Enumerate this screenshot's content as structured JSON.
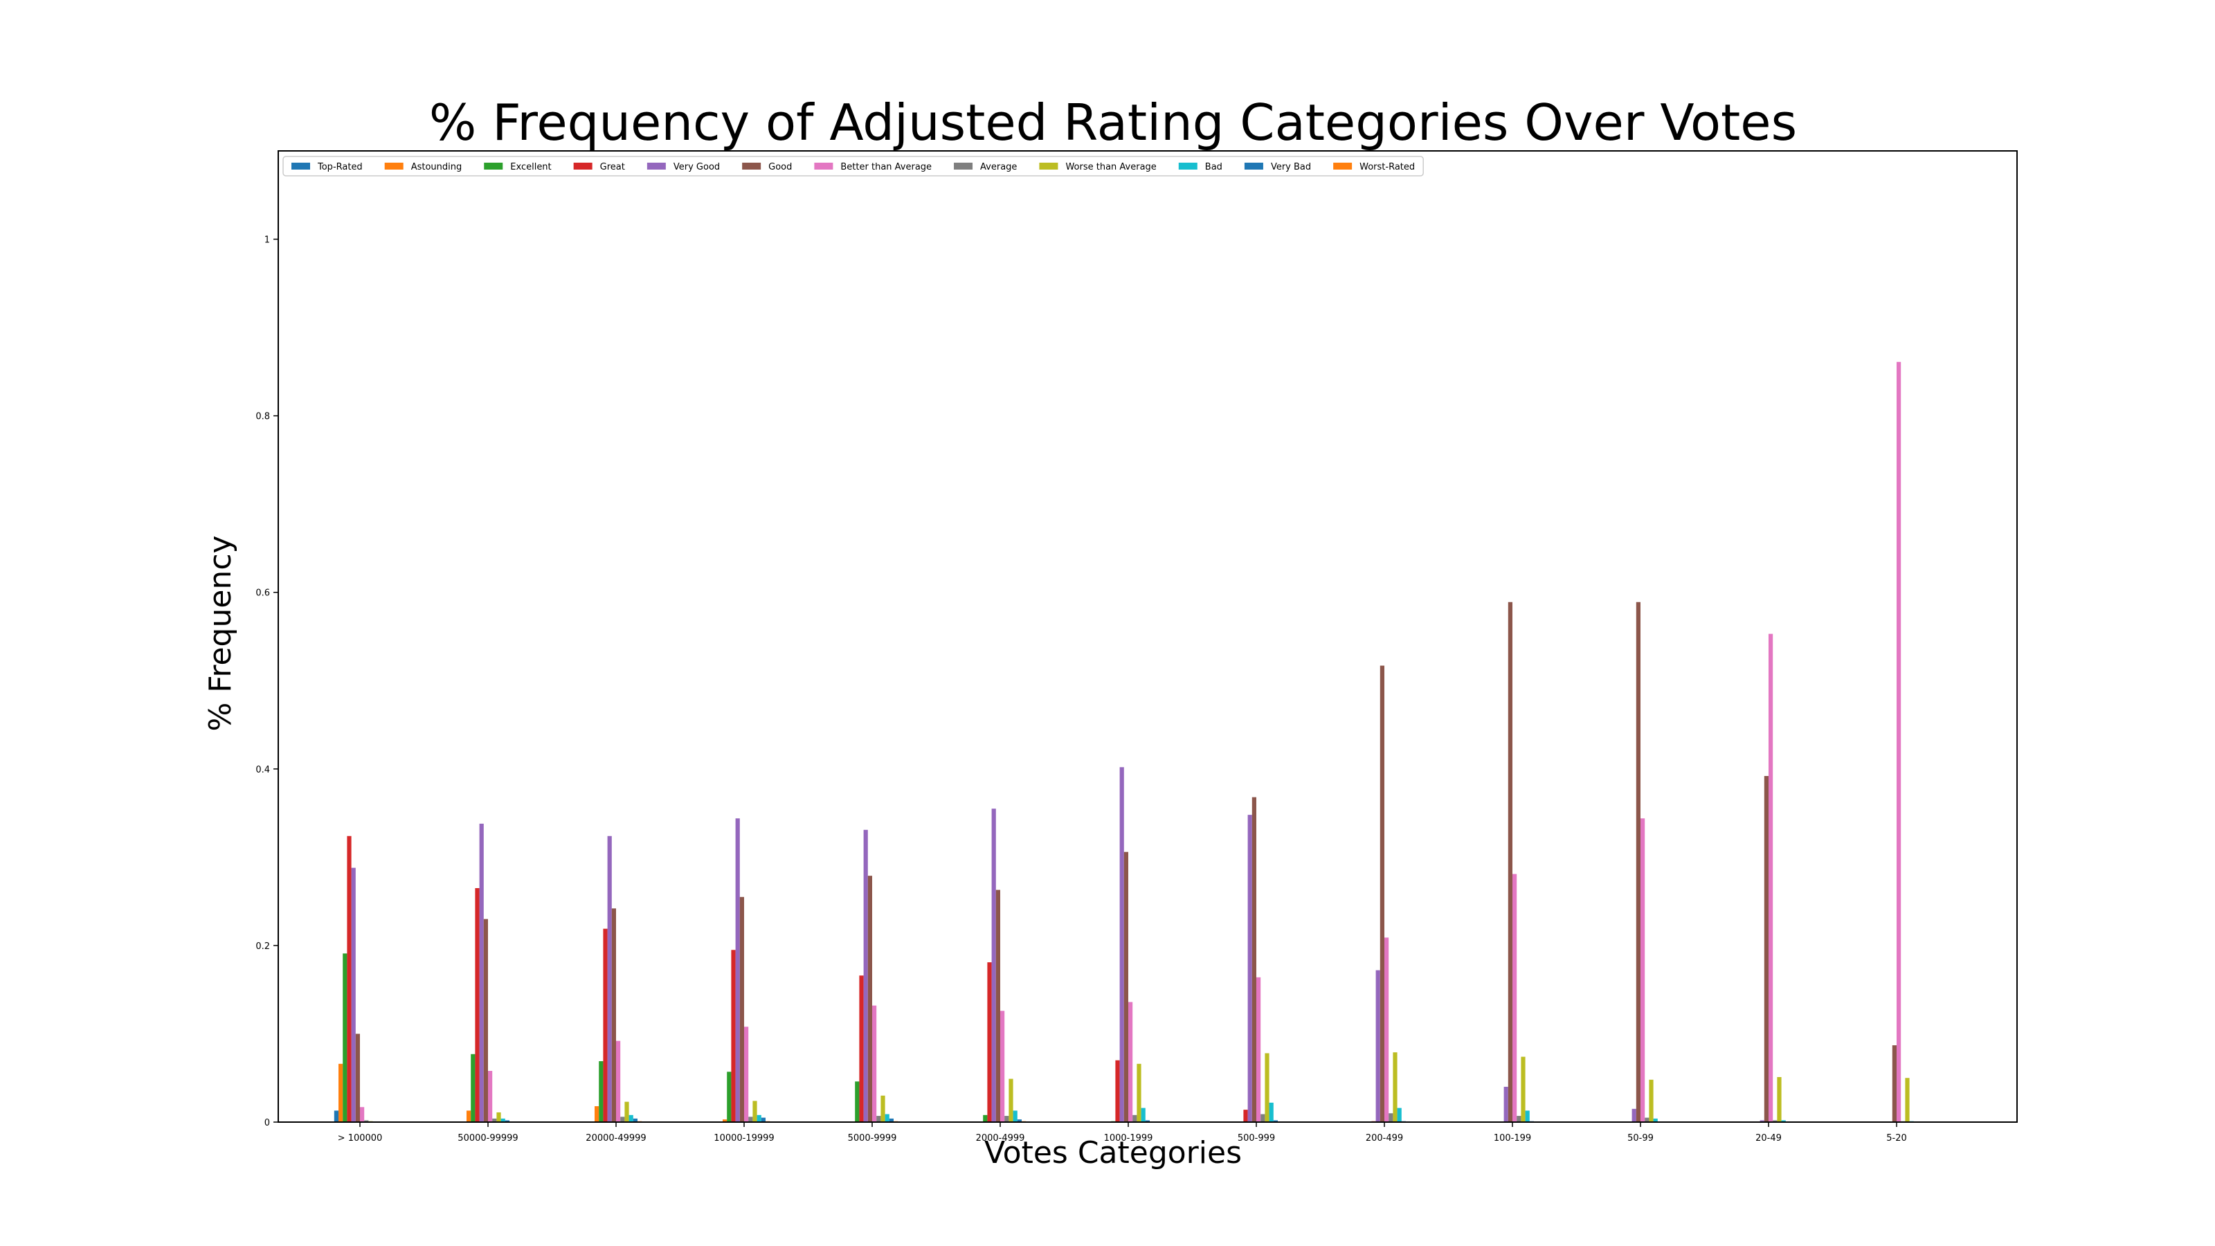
{
  "chart_data": {
    "type": "bar",
    "title": "% Frequency of Adjusted Rating Categories Over Votes",
    "xlabel": "Votes Categories",
    "ylabel": "% Frequency",
    "ylim": [
      0,
      1.1
    ],
    "yticks": [
      0,
      0.2,
      0.4,
      0.6,
      0.8,
      1
    ],
    "ytick_labels": [
      "0",
      "0.2",
      "0.4",
      "0.6",
      "0.8",
      "1"
    ],
    "grid": false,
    "legend_placement": "top-left",
    "legend_columns": 12,
    "categories": [
      "> 100000",
      "50000-99999",
      "20000-49999",
      "10000-19999",
      "5000-9999",
      "2000-4999",
      "1000-1999",
      "500-999",
      "200-499",
      "100-199",
      "50-99",
      "20-49",
      "5-20"
    ],
    "series": [
      {
        "name": "Top-Rated",
        "color": "#1f77b4",
        "values": [
          0.013,
          0,
          0,
          0,
          0,
          0,
          0,
          0,
          0,
          0,
          0,
          0,
          0
        ]
      },
      {
        "name": "Astounding",
        "color": "#ff7f0e",
        "values": [
          0.066,
          0.013,
          0.018,
          0.003,
          0,
          0,
          0,
          0,
          0,
          0,
          0,
          0,
          0
        ]
      },
      {
        "name": "Excellent",
        "color": "#2ca02c",
        "values": [
          0.191,
          0.077,
          0.069,
          0.057,
          0.046,
          0.008,
          0.001,
          0,
          0,
          0,
          0,
          0,
          0
        ]
      },
      {
        "name": "Great",
        "color": "#d62728",
        "values": [
          0.324,
          0.265,
          0.219,
          0.195,
          0.166,
          0.181,
          0.07,
          0.014,
          0.001,
          0,
          0,
          0,
          0
        ]
      },
      {
        "name": "Very Good",
        "color": "#9467bd",
        "values": [
          0.288,
          0.338,
          0.324,
          0.344,
          0.331,
          0.355,
          0.402,
          0.348,
          0.172,
          0.04,
          0.015,
          0.002,
          0
        ]
      },
      {
        "name": "Good",
        "color": "#8c564b",
        "values": [
          0.1,
          0.23,
          0.242,
          0.255,
          0.279,
          0.263,
          0.306,
          0.368,
          0.517,
          0.589,
          0.589,
          0.392,
          0.087
        ]
      },
      {
        "name": "Better than Average",
        "color": "#e377c2",
        "values": [
          0.017,
          0.058,
          0.092,
          0.108,
          0.132,
          0.126,
          0.136,
          0.164,
          0.209,
          0.281,
          0.344,
          0.553,
          0.861
        ]
      },
      {
        "name": "Average",
        "color": "#7f7f7f",
        "values": [
          0.002,
          0.004,
          0.006,
          0.006,
          0.007,
          0.007,
          0.008,
          0.009,
          0.01,
          0.007,
          0.005,
          0.002,
          0.001
        ]
      },
      {
        "name": "Worse than Average",
        "color": "#bcbd22",
        "values": [
          0.001,
          0.011,
          0.023,
          0.024,
          0.03,
          0.049,
          0.066,
          0.078,
          0.079,
          0.074,
          0.048,
          0.051,
          0.05
        ]
      },
      {
        "name": "Bad",
        "color": "#17becf",
        "values": [
          0,
          0.004,
          0.008,
          0.008,
          0.009,
          0.013,
          0.016,
          0.022,
          0.016,
          0.013,
          0.004,
          0.002,
          0.001
        ]
      },
      {
        "name": "Very Bad",
        "color": "#1f77b4",
        "values": [
          0,
          0.002,
          0.004,
          0.005,
          0.004,
          0.003,
          0.002,
          0.002,
          0.001,
          0.001,
          0,
          0,
          0
        ]
      },
      {
        "name": "Worst-Rated",
        "color": "#ff7f0e",
        "values": [
          0,
          0,
          0.001,
          0.001,
          0.001,
          0.001,
          0,
          0,
          0,
          0,
          0,
          0,
          0
        ]
      }
    ]
  }
}
